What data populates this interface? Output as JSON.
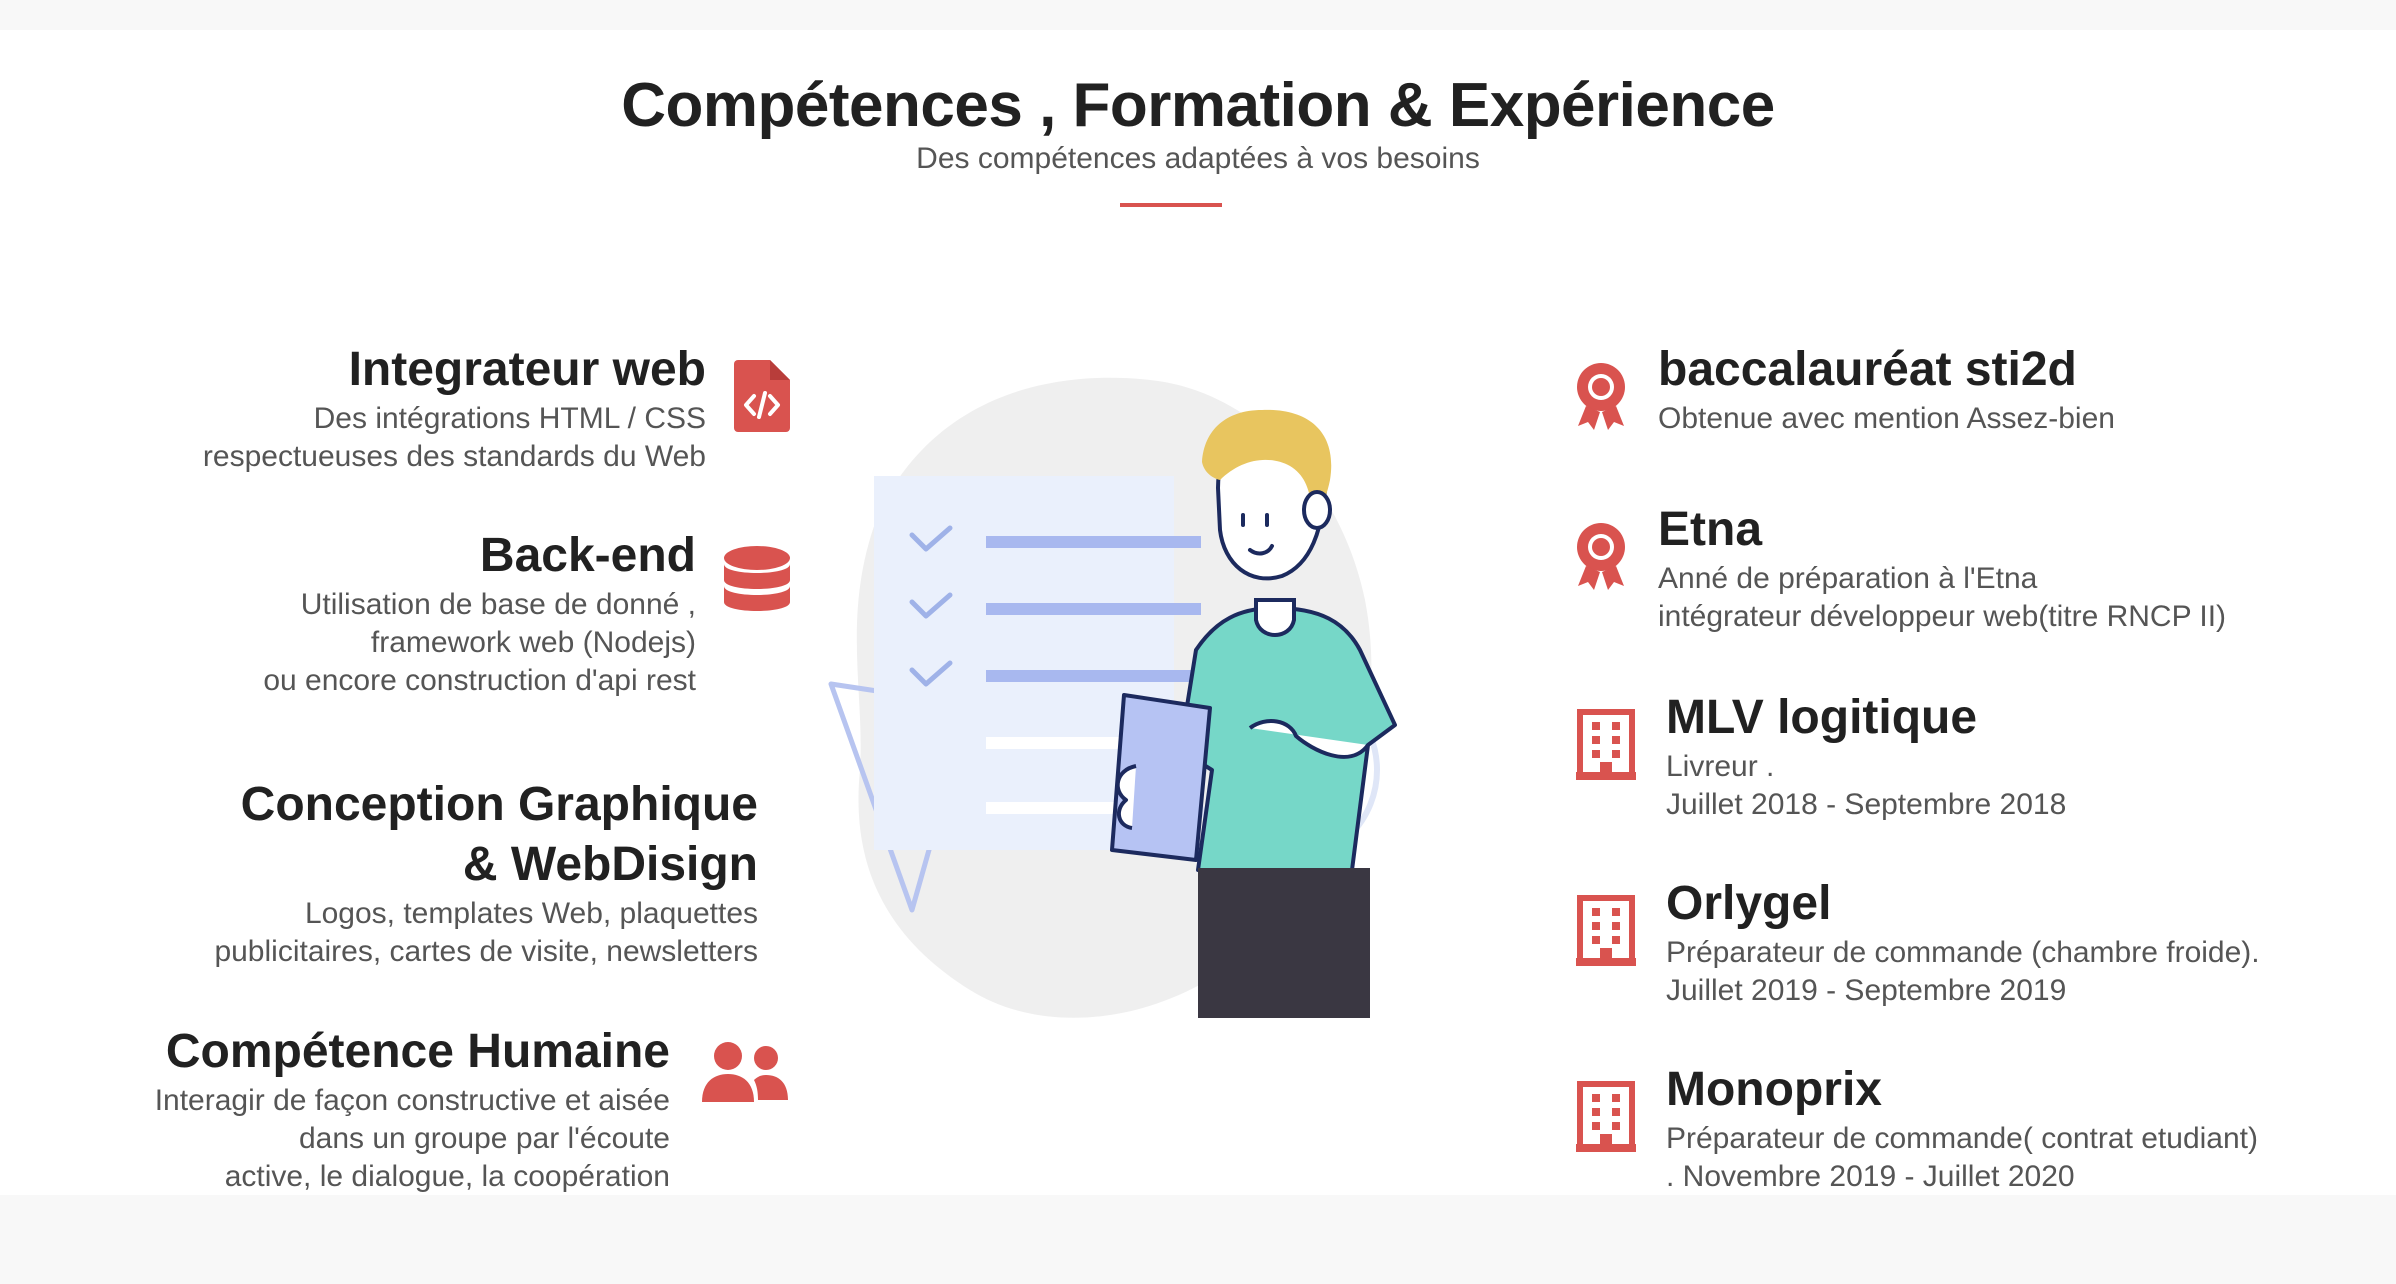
{
  "header": {
    "title": "Compétences , Formation & Expérience",
    "subtitle": "Des compétences adaptées à vos besoins"
  },
  "skills": [
    {
      "title": "Integrateur web",
      "description": "Des intégrations HTML / CSS\nrespectueuses des standards du Web",
      "icon": "file-code-icon"
    },
    {
      "title": "Back-end",
      "description": "Utilisation de base de donné ,\nframework web (Nodejs)\nou encore construction d'api rest",
      "icon": "database-icon"
    },
    {
      "title": "Conception Graphique\n& WebDisign",
      "description": "Logos, templates Web, plaquettes\npublicitaires, cartes de visite, newsletters",
      "icon": ""
    },
    {
      "title": "Compétence Humaine",
      "description": "Interagir de façon constructive et aisée\ndans un groupe par l'écoute\nactive, le dialogue, la coopération",
      "icon": "users-icon"
    }
  ],
  "experience": [
    {
      "title": "baccalauréat sti2d",
      "description": "Obtenue avec mention Assez-bien",
      "icon": "award-icon"
    },
    {
      "title": "Etna",
      "description": "Anné de préparation à l'Etna\nintégrateur développeur web(titre RNCP II)",
      "icon": "award-icon"
    },
    {
      "title": "MLV logitique",
      "description": "Livreur .\nJuillet 2018 - Septembre 2018",
      "icon": "building-icon"
    },
    {
      "title": "Orlygel",
      "description": "Préparateur de commande (chambre froide).\nJuillet 2019 - Septembre 2019",
      "icon": "building-icon"
    },
    {
      "title": "Monoprix",
      "description": "Préparateur de commande( contrat etudiant)\n. Novembre 2019 - Juillet 2020",
      "icon": "building-icon"
    }
  ],
  "colors": {
    "accent": "#d9534f",
    "text": "#212121",
    "muted": "#555555",
    "background": "#ffffff"
  }
}
